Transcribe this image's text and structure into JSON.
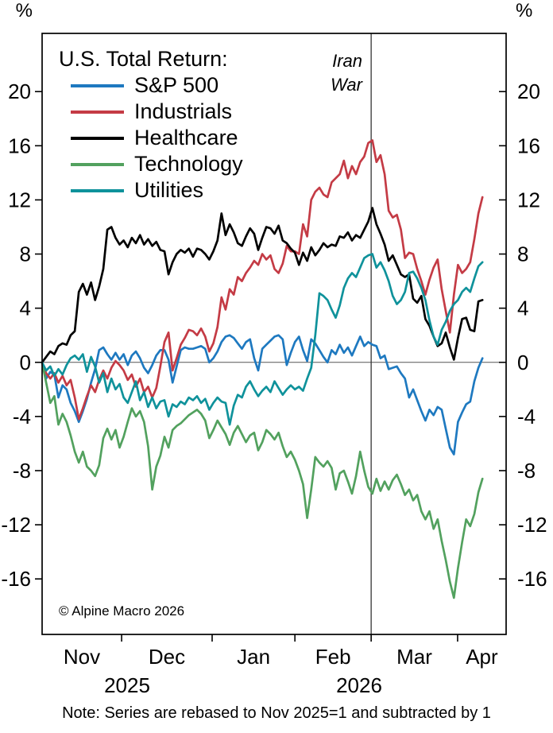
{
  "chart_data": {
    "type": "line",
    "legend_title": "U.S. Total Return:",
    "y_axis": {
      "unit": "%",
      "ticks": [
        20,
        16,
        12,
        8,
        4,
        0,
        -4,
        -8,
        -12,
        -16
      ],
      "ylim": [
        -20.1,
        24.3
      ],
      "zero_line": true
    },
    "x_axis": {
      "idx_unit": "trading days since Nov 3 2025",
      "idx_max": 113.8,
      "month_ticks_idx": [
        19.5,
        41.7,
        62.0,
        80.7,
        101.9
      ],
      "months": [
        {
          "label": "Nov",
          "center_idx": 9.75
        },
        {
          "label": "Dec",
          "center_idx": 30.6
        },
        {
          "label": "Jan",
          "center_idx": 51.85
        },
        {
          "label": "Feb",
          "center_idx": 71.35
        },
        {
          "label": "Mar",
          "center_idx": 91.3
        },
        {
          "label": "Apr",
          "center_idx": 107.85
        }
      ],
      "years": [
        {
          "label": "2025",
          "center_idx": 20.85
        },
        {
          "label": "2026",
          "center_idx": 77.75
        }
      ]
    },
    "event_line": {
      "x_idx": 80.7,
      "label_lines": [
        "Iran",
        "War"
      ]
    },
    "series": [
      {
        "name": "S&P 500",
        "color": "#1e79c0",
        "values": [
          0,
          -1.2,
          -0.7,
          -0.9,
          -2.6,
          -1.7,
          -2.0,
          -3.0,
          -3.6,
          -4.4,
          -3.6,
          -2.7,
          -1.5,
          -0.5,
          0.9,
          1.1,
          0.6,
          0.2,
          0.7,
          0.2,
          0.6,
          -0.2,
          0.5,
          0.8,
          0.3,
          -0.4,
          -0.8,
          -0.2,
          0.5,
          0.9,
          0.9,
          0.2,
          -1.5,
          -0.3,
          0.9,
          1.1,
          1.0,
          1.0,
          1.1,
          1.2,
          1.0,
          0.0,
          0.3,
          0.8,
          1.5,
          1.9,
          2.0,
          1.8,
          1.4,
          1.0,
          1.5,
          1.7,
          0.3,
          -0.6,
          1.0,
          1.3,
          1.6,
          1.9,
          2.0,
          1.7,
          -0.2,
          0.7,
          1.5,
          1.9,
          0.9,
          0.1,
          1.7,
          1.4,
          0.9,
          0.4,
          0.0,
          0.9,
          0.6,
          1.3,
          0.7,
          1.1,
          0.5,
          1.2,
          1.9,
          1.2,
          1.5,
          1.3,
          1.2,
          0.3,
          0.5,
          -0.5,
          -0.4,
          -0.3,
          -0.8,
          -1.2,
          -2.6,
          -2.0,
          -2.8,
          -3.6,
          -4.3,
          -3.5,
          -3.9,
          -3.3,
          -3.5,
          -4.9,
          -6.3,
          -6.8,
          -4.4,
          -3.7,
          -3.1,
          -2.9,
          -1.4,
          -0.4,
          0.3
        ]
      },
      {
        "name": "Industrials",
        "color": "#c43b45",
        "values": [
          0,
          -0.8,
          -1.2,
          -0.8,
          -1.5,
          -1.0,
          -1.7,
          -1.3,
          -2.6,
          -4.2,
          -3.4,
          -2.5,
          -1.7,
          -2.2,
          -1.3,
          -0.6,
          -1.2,
          -0.4,
          0.1,
          -0.2,
          -0.6,
          -1.3,
          -0.9,
          -1.8,
          -1.2,
          -2.2,
          -1.8,
          -2.6,
          -1.9,
          -0.3,
          1.5,
          2.2,
          -0.6,
          0.3,
          1.3,
          1.8,
          2.4,
          2.3,
          2.0,
          2.5,
          1.9,
          0.8,
          1.4,
          2.6,
          4.8,
          3.9,
          5.4,
          5.0,
          6.3,
          6.0,
          6.6,
          7.0,
          7.5,
          7.2,
          8.0,
          7.6,
          7.9,
          6.9,
          6.6,
          7.3,
          8.6,
          8.2,
          8.2,
          8.0,
          10.2,
          9.3,
          12.0,
          12.6,
          12.9,
          12.4,
          12.2,
          13.3,
          13.6,
          13.9,
          14.9,
          13.6,
          14.5,
          13.9,
          14.8,
          15.2,
          16.2,
          16.4,
          14.8,
          15.3,
          13.9,
          11.2,
          10.7,
          10.9,
          9.8,
          7.7,
          8.1,
          8.0,
          6.9,
          6.0,
          5.0,
          6.1,
          7.0,
          7.6,
          5.4,
          3.8,
          2.2,
          5.0,
          7.2,
          6.6,
          6.9,
          7.4,
          9.1,
          11.0,
          12.2
        ]
      },
      {
        "name": "Healthcare",
        "color": "#000000",
        "values": [
          0,
          0.4,
          0.8,
          0.6,
          1.2,
          1.4,
          1.3,
          2.0,
          2.3,
          5.2,
          5.8,
          5.0,
          5.9,
          4.6,
          5.6,
          6.9,
          9.8,
          10.0,
          9.2,
          8.7,
          9.0,
          8.5,
          9.2,
          8.8,
          9.4,
          8.7,
          9.1,
          8.6,
          8.9,
          8.3,
          8.2,
          6.5,
          7.4,
          8.0,
          8.3,
          8.1,
          8.4,
          7.8,
          8.4,
          8.3,
          8.0,
          7.6,
          8.2,
          9.0,
          11.0,
          9.4,
          10.2,
          9.6,
          8.8,
          8.6,
          9.3,
          9.9,
          9.5,
          8.3,
          9.2,
          10.0,
          9.9,
          9.5,
          10.1,
          9.0,
          8.8,
          8.4,
          8.1,
          7.2,
          8.1,
          7.5,
          8.5,
          7.9,
          8.3,
          8.8,
          8.5,
          8.7,
          8.6,
          9.3,
          9.2,
          9.6,
          9.0,
          9.4,
          9.2,
          9.8,
          10.4,
          11.4,
          10.2,
          9.5,
          8.7,
          7.5,
          7.9,
          7.2,
          6.5,
          6.3,
          6.5,
          4.7,
          4.4,
          4.9,
          3.2,
          2.7,
          1.9,
          1.2,
          1.4,
          2.2,
          1.1,
          0.2,
          1.8,
          3.2,
          3.3,
          2.4,
          2.3,
          4.5,
          4.6
        ]
      },
      {
        "name": "Technology",
        "color": "#52a15e",
        "values": [
          0,
          -1.5,
          -3.0,
          -2.5,
          -4.6,
          -3.8,
          -4.4,
          -5.4,
          -6.6,
          -7.4,
          -6.6,
          -7.7,
          -8.0,
          -8.4,
          -7.6,
          -5.6,
          -4.9,
          -5.7,
          -5.0,
          -6.3,
          -5.5,
          -4.4,
          -3.4,
          -4.0,
          -3.6,
          -4.4,
          -6.2,
          -9.4,
          -7.7,
          -6.9,
          -5.5,
          -6.3,
          -5.0,
          -4.7,
          -4.5,
          -4.2,
          -3.9,
          -3.7,
          -3.5,
          -3.8,
          -4.3,
          -5.6,
          -5.0,
          -4.3,
          -4.8,
          -5.3,
          -6.1,
          -5.2,
          -4.7,
          -5.3,
          -5.9,
          -5.4,
          -5.2,
          -6.5,
          -5.9,
          -5.0,
          -5.3,
          -5.7,
          -5.2,
          -6.2,
          -7.0,
          -6.6,
          -7.2,
          -8.0,
          -9.0,
          -11.5,
          -9.4,
          -7.0,
          -7.4,
          -7.7,
          -7.3,
          -7.8,
          -9.4,
          -8.2,
          -8.0,
          -8.8,
          -9.7,
          -8.4,
          -6.6,
          -8.0,
          -9.2,
          -9.7,
          -8.6,
          -9.5,
          -8.8,
          -9.4,
          -8.7,
          -8.3,
          -9.0,
          -9.8,
          -9.4,
          -10.2,
          -9.8,
          -11.0,
          -11.6,
          -11.0,
          -12.3,
          -11.6,
          -13.2,
          -14.6,
          -16.2,
          -17.4,
          -15.2,
          -13.3,
          -11.6,
          -12.1,
          -11.2,
          -9.6,
          -8.6
        ]
      },
      {
        "name": "Utilities",
        "color": "#0f929b",
        "values": [
          0,
          -0.6,
          -0.3,
          -1.0,
          -0.5,
          -0.9,
          -0.2,
          0.3,
          0.5,
          0.2,
          0.6,
          -0.7,
          0.4,
          -0.3,
          -1.5,
          -0.8,
          -2.2,
          -1.2,
          -2.0,
          -1.6,
          -2.6,
          -3.0,
          -2.2,
          -1.4,
          -2.8,
          -2.2,
          -3.3,
          -2.6,
          -3.4,
          -2.9,
          -2.8,
          -4.0,
          -3.1,
          -3.3,
          -2.9,
          -3.1,
          -2.6,
          -2.8,
          -2.5,
          -3.0,
          -2.7,
          -3.5,
          -3.0,
          -2.6,
          -2.9,
          -3.0,
          -4.6,
          -3.2,
          -2.4,
          -2.6,
          -1.8,
          -1.4,
          -2.0,
          -2.5,
          -2.1,
          -1.8,
          -2.2,
          -1.4,
          -1.9,
          -2.4,
          -2.0,
          -1.7,
          -2.0,
          -1.8,
          -2.1,
          -1.2,
          -0.4,
          2.0,
          5.1,
          4.9,
          4.6,
          3.9,
          3.3,
          4.2,
          5.5,
          6.2,
          6.6,
          6.3,
          7.0,
          7.7,
          7.9,
          8.0,
          7.0,
          7.4,
          6.8,
          6.0,
          4.9,
          4.3,
          4.6,
          5.2,
          6.6,
          6.7,
          6.2,
          5.5,
          4.6,
          3.1,
          1.9,
          1.3,
          2.4,
          3.0,
          3.8,
          4.3,
          4.6,
          5.2,
          5.5,
          5.2,
          6.2,
          7.1,
          7.4
        ]
      }
    ]
  },
  "annotations": {
    "copyright": "© Alpine Macro 2026",
    "note": "Note: Series are rebased to Nov 2025=1 and subtracted by 1"
  }
}
